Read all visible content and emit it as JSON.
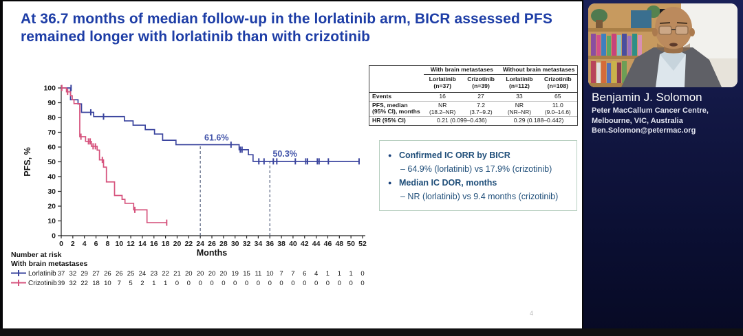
{
  "slide": {
    "title": "At 36.7 months of median follow-up in the lorlatinib arm, BICR assessed PFS remained longer with lorlatinib than with crizotinib",
    "page_number": "4"
  },
  "stats_table": {
    "group_headers": [
      "With brain metastases",
      "Without brain metastases"
    ],
    "columns": [
      {
        "drug": "Lorlatinib",
        "n": "(n=37)"
      },
      {
        "drug": "Crizotinib",
        "n": "(n=39)"
      },
      {
        "drug": "Lorlatinib",
        "n": "(n=112)"
      },
      {
        "drug": "Crizotinib",
        "n": "(n=108)"
      }
    ],
    "rows": {
      "events": {
        "label": "Events",
        "values": [
          "16",
          "27",
          "33",
          "65"
        ]
      },
      "pfs": {
        "label_line1": "PFS, median",
        "label_line2": "(95% CI), months",
        "values": [
          {
            "v": "NR",
            "ci": "(18.2–NR)"
          },
          {
            "v": "7.2",
            "ci": "(3.7–9.2)"
          },
          {
            "v": "NR",
            "ci": "(NR–NR)"
          },
          {
            "v": "11.0",
            "ci": "(9.0–14.6)"
          }
        ]
      },
      "hr": {
        "label": "HR (95% CI)",
        "values": [
          "0.21 (0.099–0.436)",
          "0.29 (0.188–0.442)"
        ]
      }
    }
  },
  "findings_box": {
    "items": [
      {
        "main": "Confirmed IC ORR by BICR",
        "sub": "– 64.9% (lorlatinib) vs 17.9% (crizotinib)"
      },
      {
        "main": "Median IC DOR, months",
        "sub": "– NR (lorlatinib) vs 9.4 months (crizotinib)"
      }
    ]
  },
  "speaker": {
    "name": "Benjamin J. Solomon",
    "affiliation_line1": "Peter MacCallum Cancer Centre,",
    "affiliation_line2": "Melbourne, VIC, Australia",
    "email": "Ben.Solomon@petermac.org"
  },
  "chart_data": {
    "type": "line",
    "subtype": "kaplan-meier-step",
    "title": "",
    "xlabel": "Months",
    "ylabel": "PFS, %",
    "xlim": [
      0,
      52
    ],
    "ylim": [
      0,
      100
    ],
    "xtick_step": 2,
    "ytick_step": 10,
    "grid": false,
    "legend_position": "number-at-risk-rows",
    "series": [
      {
        "name": "Lorlatinib",
        "color": "#3a449e",
        "steps": [
          [
            0,
            100
          ],
          [
            1.6,
            100
          ],
          [
            1.6,
            92
          ],
          [
            2.9,
            92
          ],
          [
            2.9,
            89.2
          ],
          [
            3.5,
            89.2
          ],
          [
            3.5,
            83.5
          ],
          [
            5.6,
            83.5
          ],
          [
            5.6,
            80.6
          ],
          [
            10.9,
            80.6
          ],
          [
            10.9,
            77.7
          ],
          [
            12.4,
            77.7
          ],
          [
            12.4,
            74.8
          ],
          [
            14.5,
            74.8
          ],
          [
            14.5,
            71.8
          ],
          [
            16.1,
            71.8
          ],
          [
            16.1,
            68.8
          ],
          [
            17.5,
            68.8
          ],
          [
            17.5,
            64.6
          ],
          [
            19.8,
            64.6
          ],
          [
            19.8,
            61.6
          ],
          [
            30.7,
            61.6
          ],
          [
            30.7,
            58.2
          ],
          [
            32.3,
            58.2
          ],
          [
            32.3,
            54.8
          ],
          [
            33.1,
            54.8
          ],
          [
            33.1,
            50.3
          ],
          [
            51.4,
            50.3
          ]
        ],
        "censors": [
          [
            1.7,
            100
          ],
          [
            5.1,
            83.5
          ],
          [
            7.3,
            80.6
          ],
          [
            29.3,
            61.6
          ],
          [
            30.9,
            58.2
          ],
          [
            31.2,
            58.2
          ],
          [
            34.1,
            50.3
          ],
          [
            35.0,
            50.3
          ],
          [
            36.6,
            50.3
          ],
          [
            37.2,
            50.3
          ],
          [
            40.4,
            50.3
          ],
          [
            42.2,
            50.3
          ],
          [
            42.5,
            50.3
          ],
          [
            44.2,
            50.3
          ],
          [
            44.5,
            50.3
          ],
          [
            46.1,
            50.3
          ],
          [
            51.4,
            50.3
          ]
        ]
      },
      {
        "name": "Crizotinib",
        "color": "#d6537d",
        "steps": [
          [
            0,
            100
          ],
          [
            0.9,
            100
          ],
          [
            0.9,
            97.4
          ],
          [
            1.6,
            97.4
          ],
          [
            1.6,
            94.7
          ],
          [
            1.9,
            94.7
          ],
          [
            1.9,
            92.1
          ],
          [
            2.2,
            92.1
          ],
          [
            2.2,
            89.4
          ],
          [
            3.2,
            89.4
          ],
          [
            3.2,
            67
          ],
          [
            4.2,
            67
          ],
          [
            4.2,
            63.8
          ],
          [
            5.2,
            63.8
          ],
          [
            5.2,
            60.5
          ],
          [
            6.2,
            60.5
          ],
          [
            6.2,
            57.9
          ],
          [
            6.6,
            57.9
          ],
          [
            6.6,
            51.3
          ],
          [
            7.3,
            51.3
          ],
          [
            7.3,
            46.4
          ],
          [
            7.8,
            46.4
          ],
          [
            7.8,
            36.4
          ],
          [
            9.2,
            36.4
          ],
          [
            9.2,
            27.2
          ],
          [
            10.5,
            27.2
          ],
          [
            10.5,
            24.6
          ],
          [
            11.0,
            24.6
          ],
          [
            11.0,
            21.9
          ],
          [
            12.5,
            21.9
          ],
          [
            12.5,
            17.5
          ],
          [
            14.8,
            17.5
          ],
          [
            14.8,
            8.8
          ],
          [
            18.2,
            8.8
          ]
        ],
        "censors": [
          [
            0.1,
            100
          ],
          [
            1.1,
            97.4
          ],
          [
            3.4,
            67
          ],
          [
            4.7,
            63.8
          ],
          [
            5.0,
            63.8
          ],
          [
            5.5,
            60.5
          ],
          [
            5.9,
            60.5
          ],
          [
            7.1,
            51.3
          ],
          [
            12.7,
            17.5
          ],
          [
            18.2,
            8.8
          ]
        ]
      }
    ],
    "annotations": [
      {
        "text": "61.6%",
        "x": 24.7,
        "y": 64.5
      },
      {
        "text": "50.3%",
        "x": 36.5,
        "y": 53.5
      }
    ],
    "reference_lines": [
      {
        "x": 24,
        "y_top": 61.6
      },
      {
        "x": 36,
        "y_top": 50.3
      }
    ],
    "number_at_risk": {
      "title": "Number at risk",
      "subtitle": "With brain metastases",
      "months": [
        0,
        2,
        4,
        6,
        8,
        10,
        12,
        14,
        16,
        18,
        20,
        22,
        24,
        26,
        28,
        30,
        32,
        34,
        36,
        38,
        40,
        42,
        44,
        46,
        48,
        50,
        52
      ],
      "rows": [
        {
          "name": "Lorlatinib",
          "values": [
            37,
            32,
            29,
            27,
            26,
            26,
            25,
            24,
            23,
            22,
            21,
            20,
            20,
            20,
            20,
            19,
            15,
            11,
            10,
            7,
            7,
            6,
            4,
            1,
            1,
            1,
            0
          ]
        },
        {
          "name": "Crizotinib",
          "values": [
            39,
            32,
            22,
            18,
            10,
            7,
            5,
            2,
            1,
            1,
            0,
            0,
            0,
            0,
            0,
            0,
            0,
            0,
            0,
            0,
            0,
            0,
            0,
            0,
            0,
            0,
            0
          ]
        }
      ]
    }
  }
}
